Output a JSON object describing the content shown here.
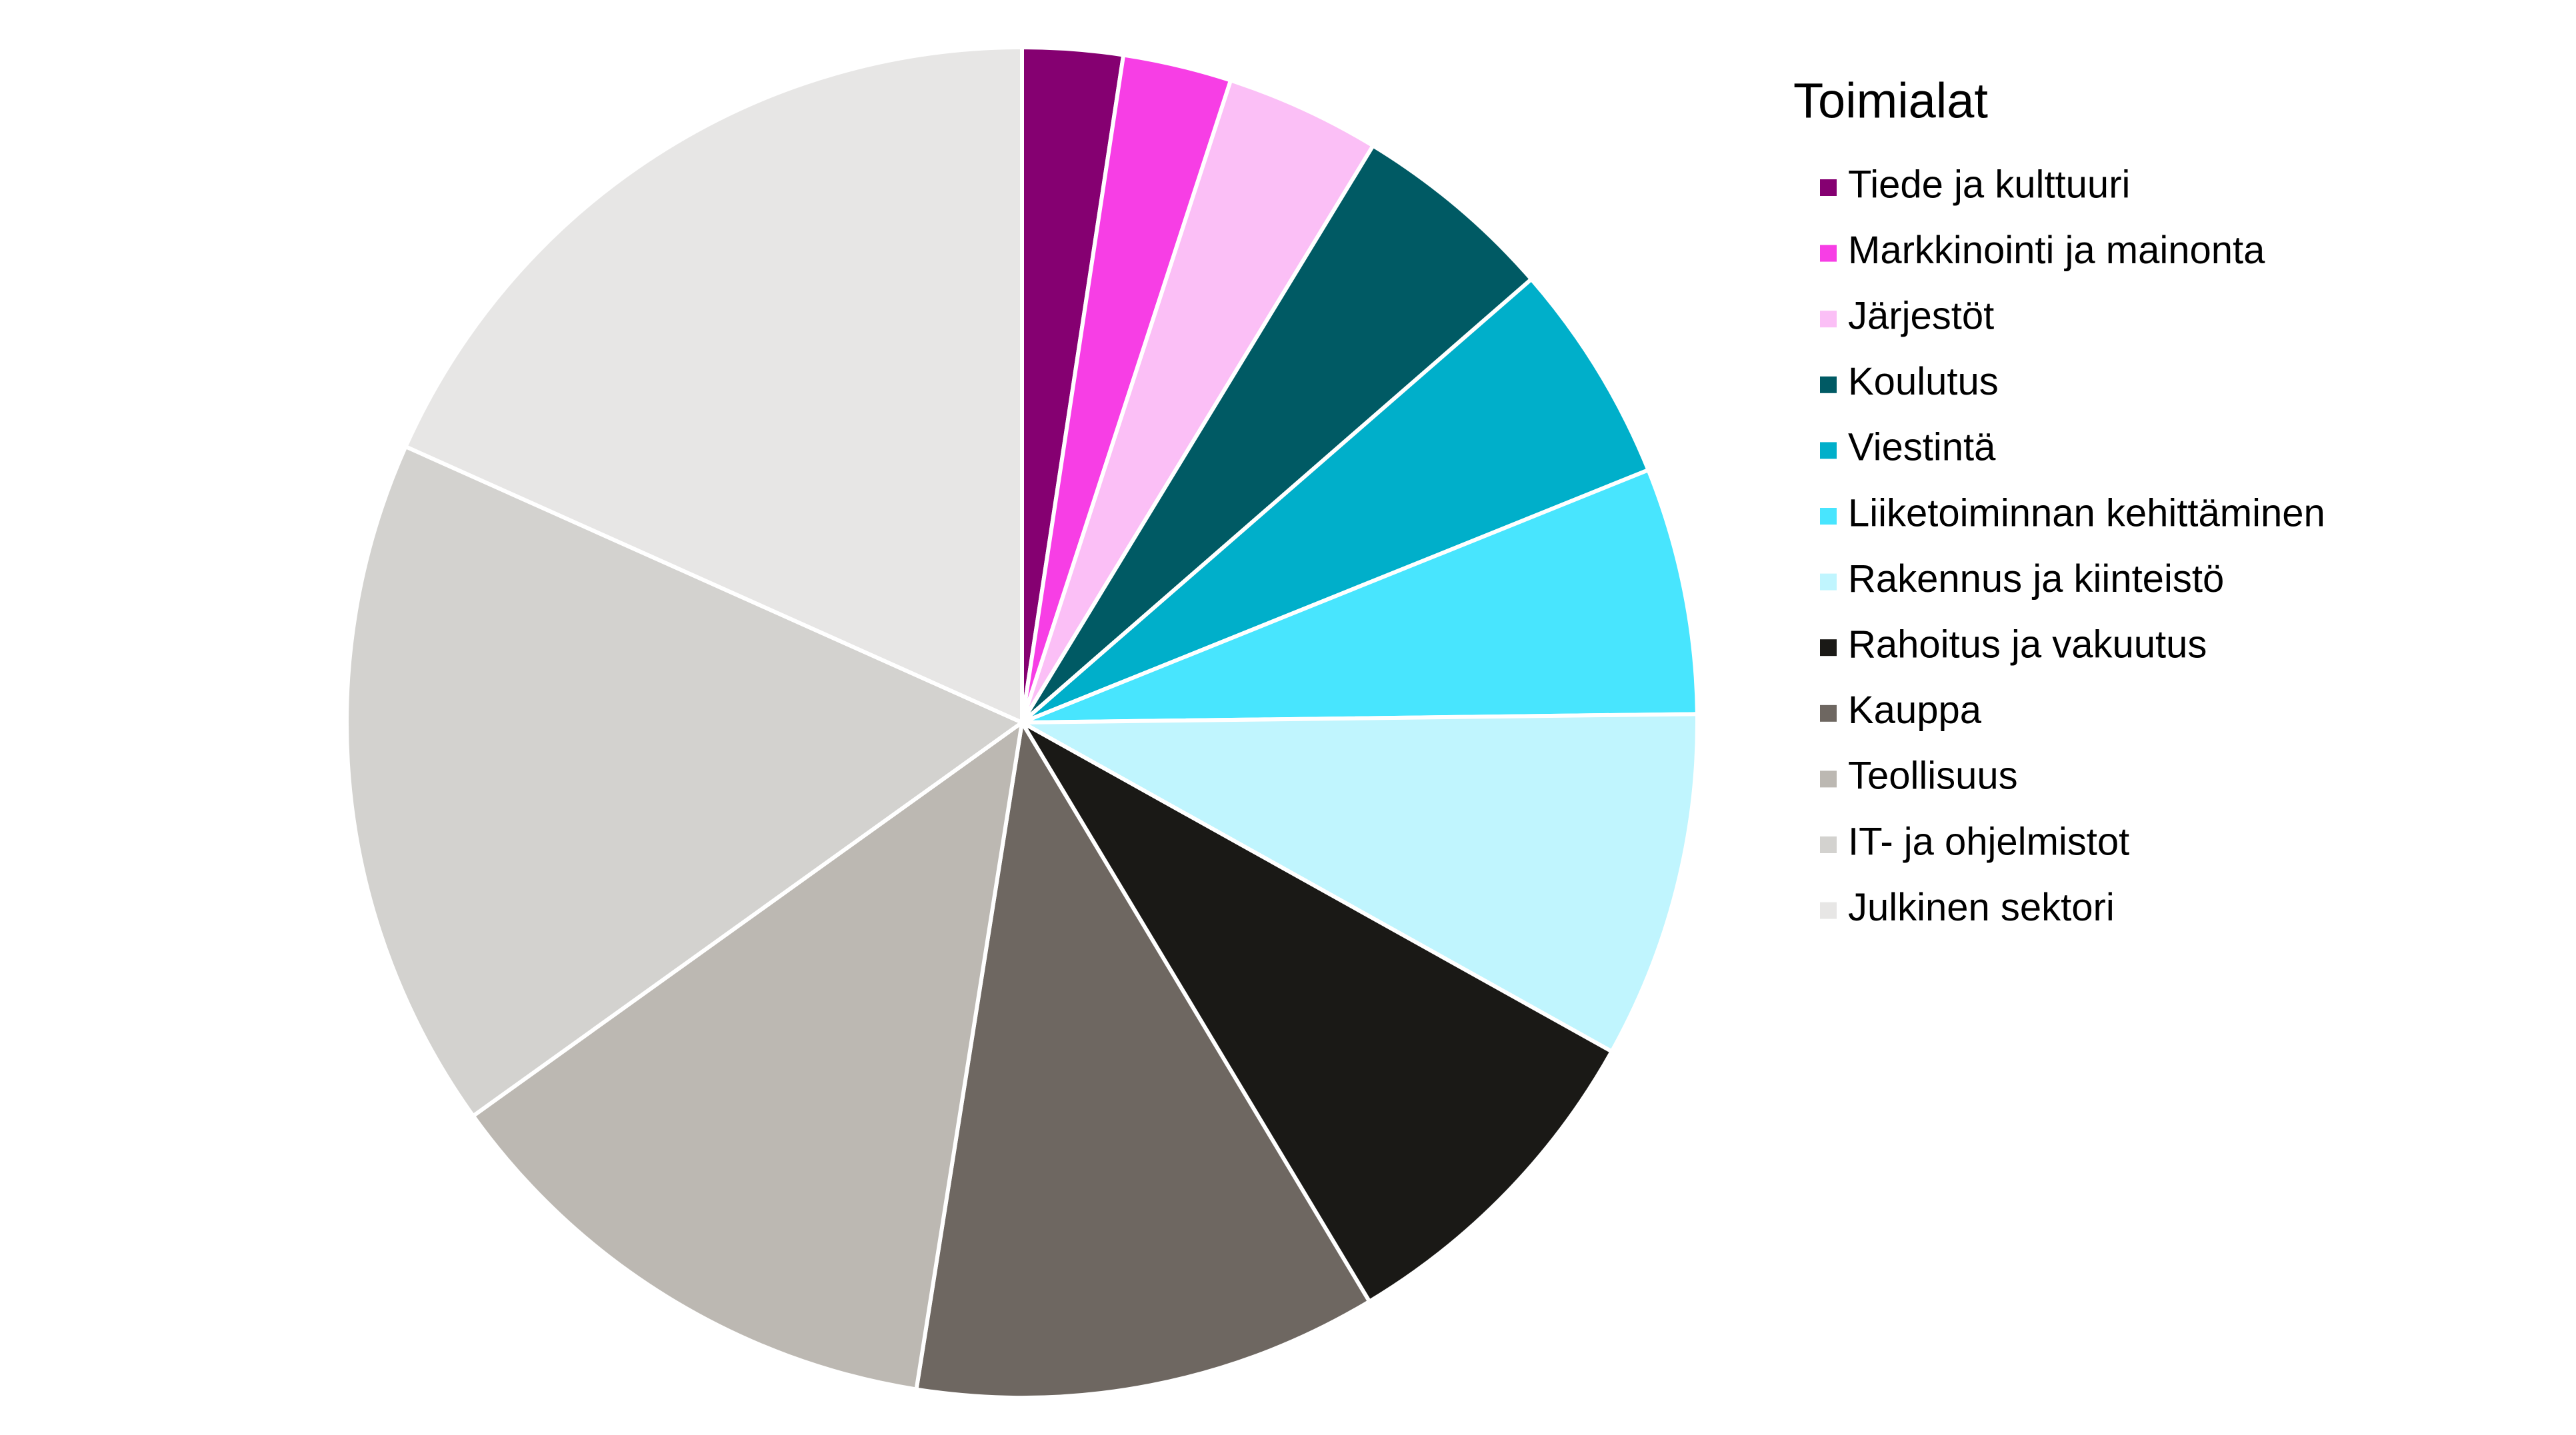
{
  "chart_data": {
    "type": "pie",
    "legend_title": "Toimialat",
    "legend_position": "right",
    "categories": [
      "Tiede ja kulttuuri",
      "Markkinointi ja mainonta",
      "Järjestöt",
      "Koulutus",
      "Viestintä",
      "Liiketoiminnan kehittäminen",
      "Rakennus ja kiinteistö",
      "Rahoitus ja vakuutus",
      "Kauppa",
      "Teollisuus",
      "IT- ja ohjelmistot",
      "Julkinen sektori"
    ],
    "values": [
      2.4,
      2.6,
      3.7,
      4.9,
      5.3,
      5.9,
      8.3,
      8.3,
      11.1,
      12.6,
      16.6,
      18.3
    ],
    "colors": [
      "#850071",
      "#f73ee5",
      "#fbbff6",
      "#005a64",
      "#00afca",
      "#48e5fe",
      "#c0f5fe",
      "#1a1916",
      "#6e6761",
      "#bcb8b2",
      "#d3d2cf",
      "#e7e6e5"
    ]
  }
}
